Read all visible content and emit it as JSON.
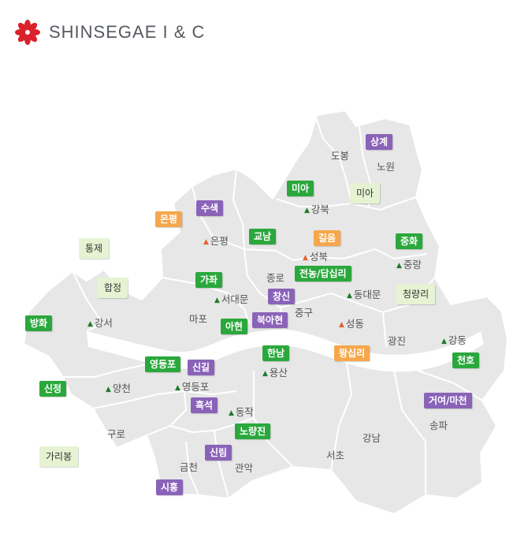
{
  "header": {
    "brand": "SHINSEGAE I & C",
    "logo_icon": "red-flower-logo",
    "logo_color": "#d9222a"
  },
  "colors": {
    "map_fill": "#e7e7e7",
    "map_border": "#ffffff",
    "tri_green": "#1e7a2e",
    "tri_orange": "#e6602a",
    "tag_green": "#2aa83c",
    "tag_purple": "#8a63b8",
    "tag_orange": "#f6a74c",
    "tag_light": "#e6f3d3"
  },
  "districts": [
    {
      "name": "도봉",
      "marker": ""
    },
    {
      "name": "노원",
      "marker": ""
    },
    {
      "name": "강북",
      "marker": "green"
    },
    {
      "name": "은평",
      "marker": "orange"
    },
    {
      "name": "성북",
      "marker": "orange"
    },
    {
      "name": "중랑",
      "marker": "green"
    },
    {
      "name": "종로",
      "marker": ""
    },
    {
      "name": "서대문",
      "marker": "green"
    },
    {
      "name": "동대문",
      "marker": "green"
    },
    {
      "name": "마포",
      "marker": ""
    },
    {
      "name": "중구",
      "marker": ""
    },
    {
      "name": "성동",
      "marker": "orange"
    },
    {
      "name": "강서",
      "marker": "green"
    },
    {
      "name": "광진",
      "marker": ""
    },
    {
      "name": "강동",
      "marker": "green"
    },
    {
      "name": "용산",
      "marker": "green"
    },
    {
      "name": "양천",
      "marker": "green"
    },
    {
      "name": "영등포",
      "marker": "green"
    },
    {
      "name": "동작",
      "marker": "green"
    },
    {
      "name": "구로",
      "marker": ""
    },
    {
      "name": "강남",
      "marker": ""
    },
    {
      "name": "송파",
      "marker": ""
    },
    {
      "name": "서초",
      "marker": ""
    },
    {
      "name": "금천",
      "marker": ""
    },
    {
      "name": "관악",
      "marker": ""
    }
  ],
  "tags": [
    {
      "label": "상계",
      "style": "purple"
    },
    {
      "label": "미아",
      "style": "green"
    },
    {
      "label": "미아",
      "style": "light"
    },
    {
      "label": "수색",
      "style": "purple"
    },
    {
      "label": "은평",
      "style": "orange"
    },
    {
      "label": "교남",
      "style": "green"
    },
    {
      "label": "길음",
      "style": "orange"
    },
    {
      "label": "중화",
      "style": "green"
    },
    {
      "label": "통제",
      "style": "light"
    },
    {
      "label": "합정",
      "style": "light"
    },
    {
      "label": "가좌",
      "style": "green"
    },
    {
      "label": "전농/답십리",
      "style": "green"
    },
    {
      "label": "창신",
      "style": "purple"
    },
    {
      "label": "청량리",
      "style": "light"
    },
    {
      "label": "북아현",
      "style": "purple"
    },
    {
      "label": "방화",
      "style": "green"
    },
    {
      "label": "아현",
      "style": "green"
    },
    {
      "label": "한남",
      "style": "green"
    },
    {
      "label": "왕십리",
      "style": "orange"
    },
    {
      "label": "천호",
      "style": "green"
    },
    {
      "label": "영등포",
      "style": "green"
    },
    {
      "label": "신길",
      "style": "purple"
    },
    {
      "label": "신정",
      "style": "green"
    },
    {
      "label": "거여/마천",
      "style": "purple"
    },
    {
      "label": "흑석",
      "style": "purple"
    },
    {
      "label": "노량진",
      "style": "green"
    },
    {
      "label": "신림",
      "style": "purple"
    },
    {
      "label": "가리봉",
      "style": "light"
    },
    {
      "label": "시흥",
      "style": "purple"
    }
  ]
}
